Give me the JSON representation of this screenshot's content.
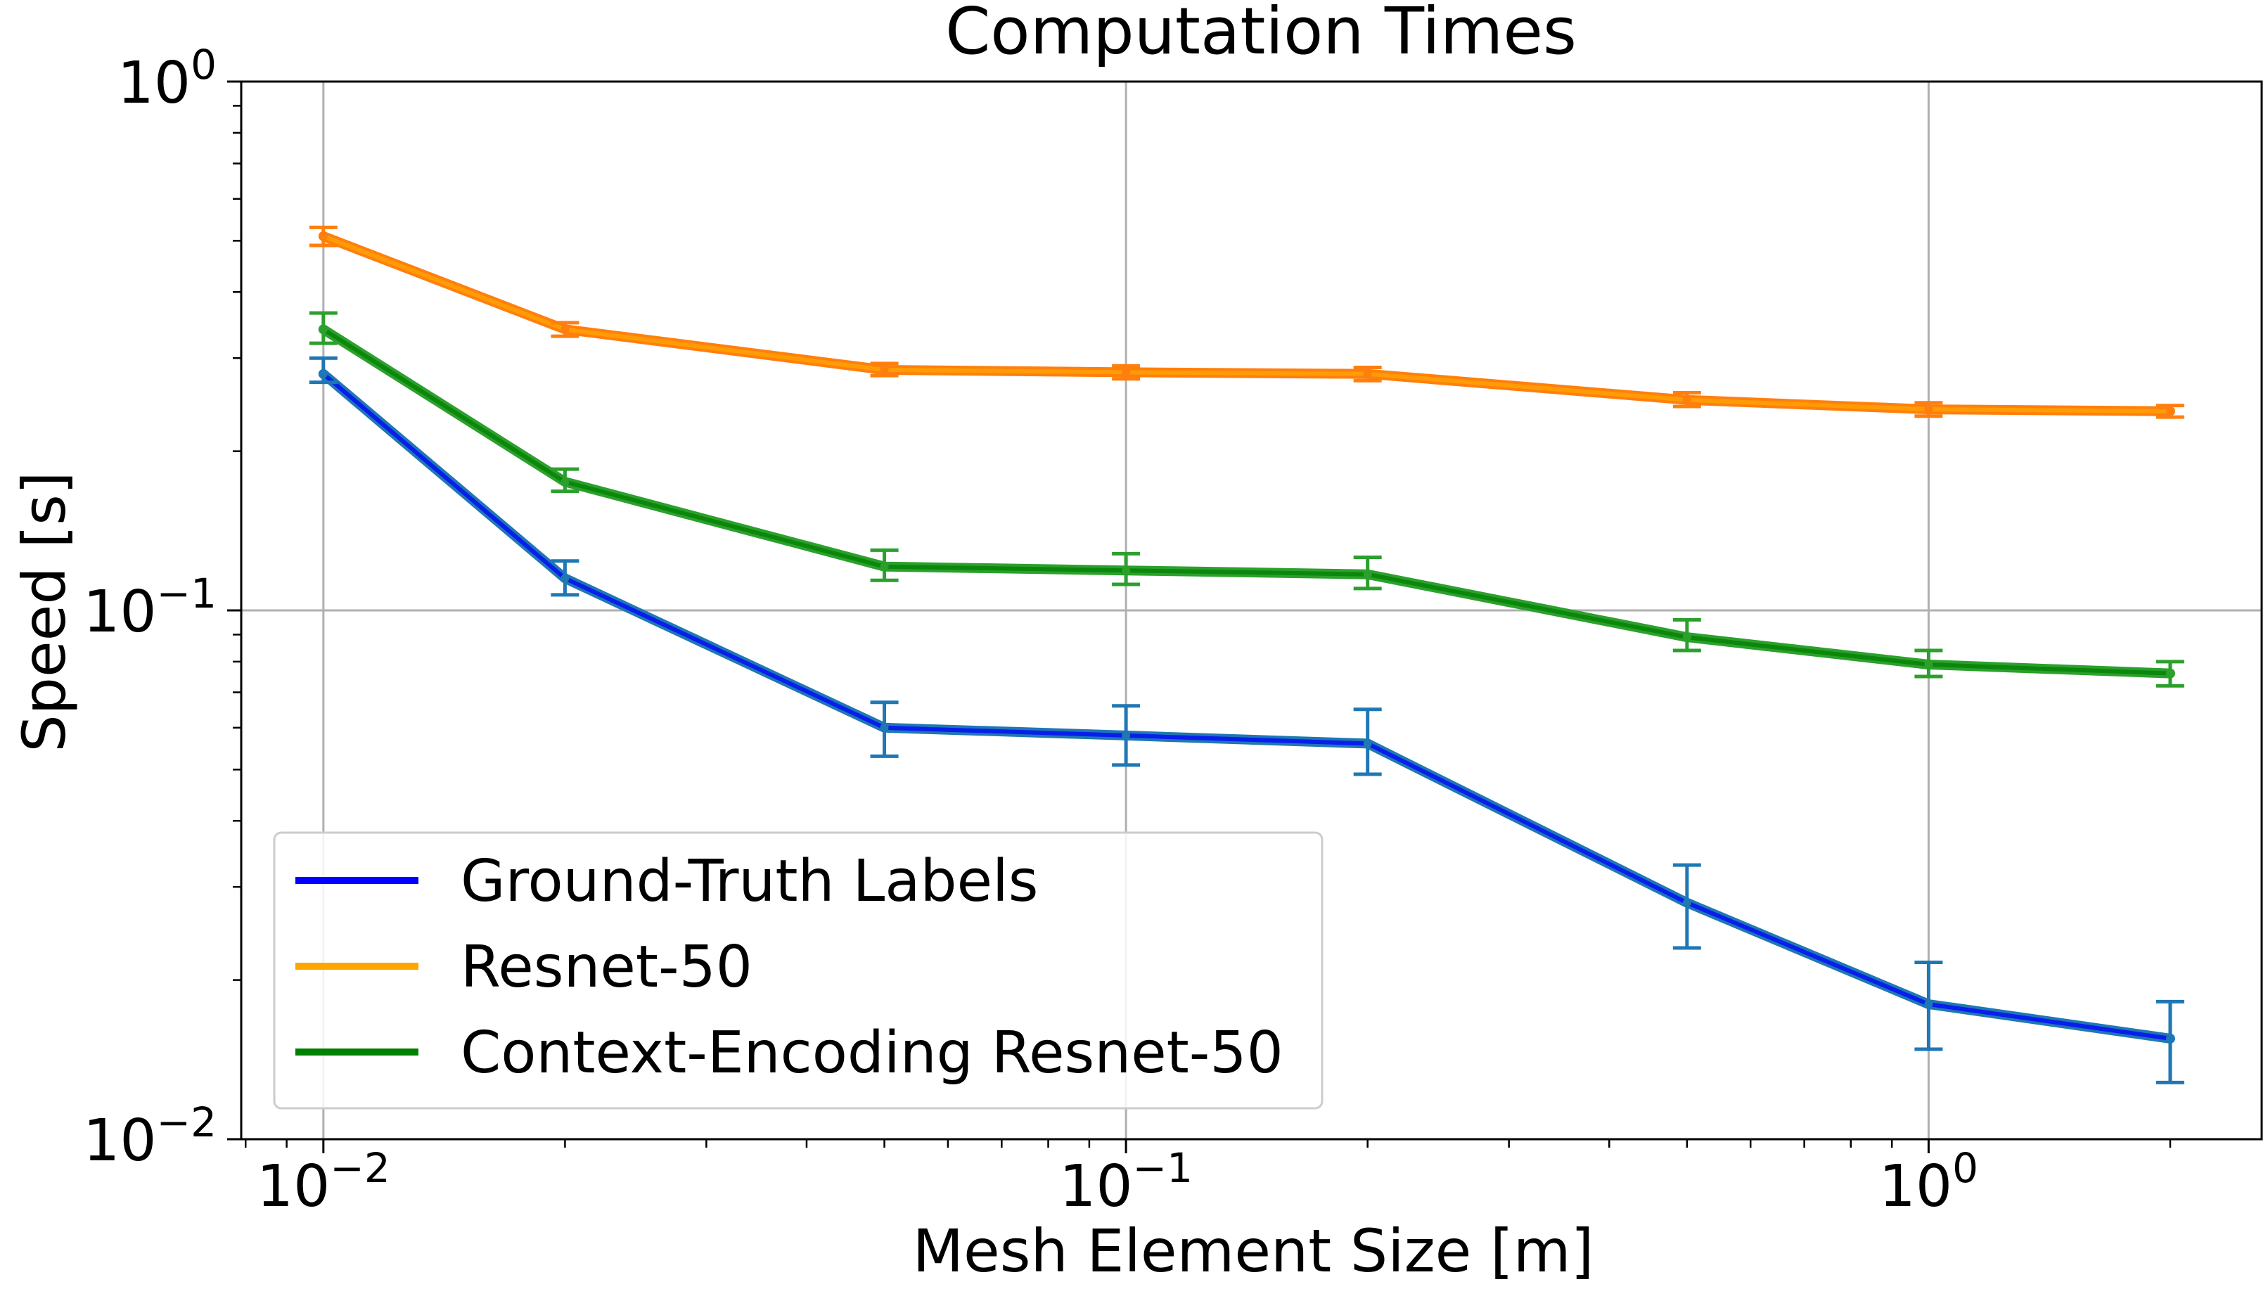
{
  "chart_data": {
    "type": "line",
    "title": "Computation Times",
    "xlabel": "Mesh Element Size [m]",
    "ylabel": "Speed [s]",
    "xscale": "log",
    "yscale": "log",
    "xlim": [
      0.0079,
      2.6
    ],
    "ylim": [
      0.01,
      1.0
    ],
    "grid": true,
    "legend_position": "lower-left",
    "x_ticks": [
      {
        "value": 0.01,
        "base": "10",
        "exp": "−2"
      },
      {
        "value": 0.1,
        "base": "10",
        "exp": "−1"
      },
      {
        "value": 1,
        "base": "10",
        "exp": "0"
      }
    ],
    "y_ticks": [
      {
        "value": 0.01,
        "base": "10",
        "exp": "−2"
      },
      {
        "value": 0.1,
        "base": "10",
        "exp": "−1"
      },
      {
        "value": 1,
        "base": "10",
        "exp": "0"
      }
    ],
    "x": [
      0.01,
      0.02,
      0.05,
      0.1,
      0.2,
      0.5,
      1.0,
      2.0
    ],
    "series": [
      {
        "name": "Ground-Truth Labels",
        "legend_color": "#0000ff",
        "line_color": "#1f77b4",
        "values": [
          0.28,
          0.115,
          0.06,
          0.058,
          0.056,
          0.028,
          0.018,
          0.0155
        ],
        "err_low": [
          0.27,
          0.107,
          0.053,
          0.051,
          0.049,
          0.023,
          0.0148,
          0.0128
        ],
        "err_high": [
          0.3,
          0.124,
          0.067,
          0.066,
          0.065,
          0.033,
          0.0216,
          0.0182
        ]
      },
      {
        "name": "Resnet-50",
        "legend_color": "#ffa500",
        "line_color": "#ff7f0e",
        "values": [
          0.51,
          0.34,
          0.285,
          0.282,
          0.28,
          0.25,
          0.24,
          0.238
        ],
        "err_low": [
          0.49,
          0.33,
          0.278,
          0.274,
          0.272,
          0.243,
          0.233,
          0.232
        ],
        "err_high": [
          0.53,
          0.35,
          0.293,
          0.29,
          0.288,
          0.258,
          0.247,
          0.244
        ]
      },
      {
        "name": "Context-Encoding Resnet-50",
        "legend_color": "#008000",
        "line_color": "#2ca02c",
        "values": [
          0.34,
          0.175,
          0.121,
          0.119,
          0.117,
          0.089,
          0.079,
          0.076
        ],
        "err_low": [
          0.32,
          0.168,
          0.114,
          0.112,
          0.11,
          0.084,
          0.075,
          0.072
        ],
        "err_high": [
          0.365,
          0.185,
          0.13,
          0.128,
          0.126,
          0.096,
          0.084,
          0.08
        ]
      }
    ]
  }
}
